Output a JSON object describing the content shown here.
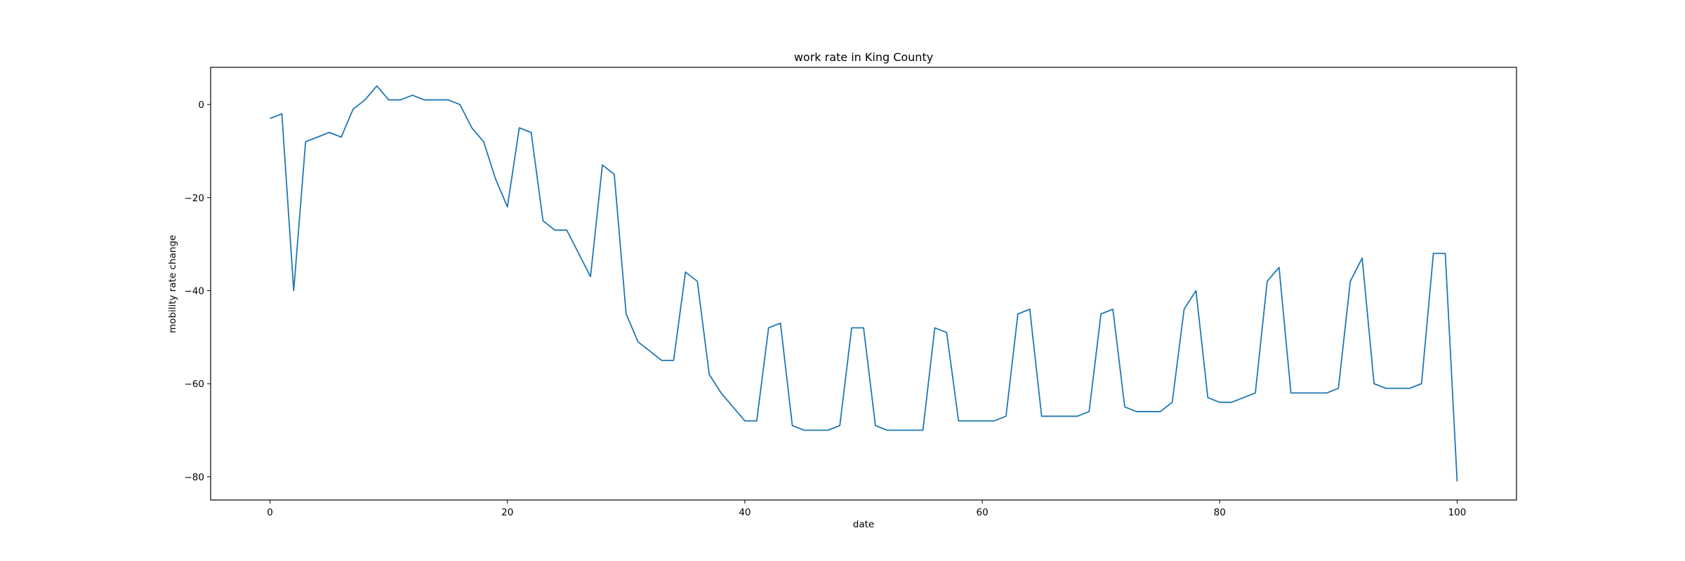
{
  "chart_data": {
    "type": "line",
    "title": "work rate in King County",
    "xlabel": "date",
    "ylabel": "mobility rate change",
    "xlim": [
      -5,
      105
    ],
    "ylim": [
      -85,
      8
    ],
    "xticks": [
      0,
      20,
      40,
      60,
      80,
      100
    ],
    "yticks": [
      0,
      -20,
      -40,
      -60,
      -80
    ],
    "xtick_labels": [
      "0",
      "20",
      "40",
      "60",
      "80",
      "100"
    ],
    "ytick_labels": [
      "0",
      "−20",
      "−40",
      "−60",
      "−80"
    ],
    "grid": false,
    "line_color": "#1f77b4",
    "series": [
      {
        "x": [
          0,
          1,
          2,
          3,
          4,
          5,
          6,
          7,
          8,
          9,
          10,
          11,
          12,
          13,
          14,
          15,
          16,
          17,
          18,
          19,
          20,
          21,
          22,
          23,
          24,
          25,
          26,
          27,
          28,
          29,
          30,
          31,
          32,
          33,
          34,
          35,
          36,
          37,
          38,
          39,
          40,
          41,
          42,
          43,
          44,
          45,
          46,
          47,
          48,
          49,
          50,
          51,
          52,
          53,
          54,
          55,
          56,
          57,
          58,
          59,
          60,
          61,
          62,
          63,
          64,
          65,
          66,
          67,
          68,
          69,
          70,
          71,
          72,
          73,
          74,
          75,
          76,
          77,
          78,
          79,
          80,
          81,
          82,
          83,
          84,
          85,
          86,
          87,
          88,
          89,
          90,
          91,
          92,
          93,
          94,
          95,
          96,
          97,
          98,
          99,
          100
        ],
        "values": [
          -3,
          -2,
          -40,
          -8,
          -7,
          -6,
          -7,
          -1,
          1,
          4,
          1,
          1,
          2,
          1,
          1,
          1,
          0,
          -5,
          -8,
          -16,
          -22,
          -5,
          -6,
          -25,
          -27,
          -27,
          -32,
          -37,
          -13,
          -15,
          -45,
          -51,
          -53,
          -55,
          -55,
          -36,
          -38,
          -58,
          -62,
          -65,
          -68,
          -68,
          -48,
          -47,
          -69,
          -70,
          -70,
          -70,
          -69,
          -48,
          -48,
          -69,
          -70,
          -70,
          -70,
          -70,
          -48,
          -49,
          -68,
          -68,
          -68,
          -68,
          -67,
          -45,
          -44,
          -67,
          -67,
          -67,
          -67,
          -66,
          -45,
          -44,
          -65,
          -66,
          -66,
          -66,
          -64,
          -44,
          -40,
          -63,
          -64,
          -64,
          -63,
          -62,
          -38,
          -35,
          -62,
          -62,
          -62,
          -62,
          -61,
          -38,
          -33,
          -60,
          -61,
          -61,
          -61,
          -60,
          -32,
          -32,
          -81
        ]
      }
    ]
  }
}
